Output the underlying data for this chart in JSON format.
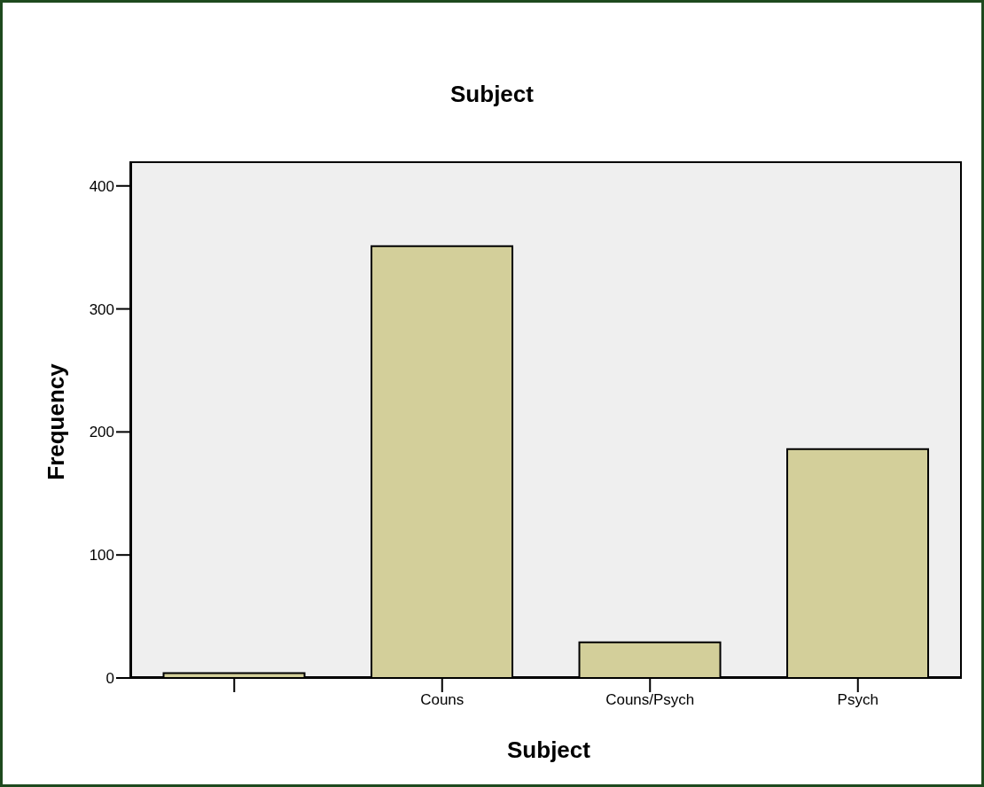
{
  "chart_data": {
    "type": "bar",
    "title": "Subject",
    "xlabel": "Subject",
    "ylabel": "Frequency",
    "categories": [
      null,
      "Couns",
      "Couns/Psych",
      "Psych"
    ],
    "values": [
      4,
      351,
      29,
      186
    ],
    "color": "#d3cf9a",
    "ylim": [
      0,
      420
    ],
    "yticks": [
      0,
      100,
      200,
      300,
      400
    ],
    "grid": false
  }
}
